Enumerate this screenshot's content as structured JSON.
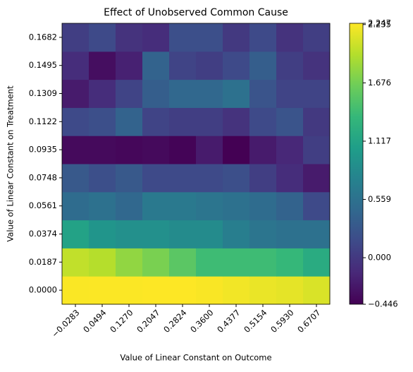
{
  "chart_data": {
    "type": "heatmap",
    "title": "Effect of Unobserved Common Cause",
    "x_label": "Value of Linear Constant on Outcome",
    "y_label": "Value of Linear Constant on Treatment",
    "x_categories": [
      "−0.0283",
      "0.0494",
      "0.1270",
      "0.2047",
      "0.2824",
      "0.3600",
      "0.4377",
      "0.5154",
      "0.5930",
      "0.6707"
    ],
    "y_categories": [
      "0.0000",
      "0.0187",
      "0.0374",
      "0.0561",
      "0.0748",
      "0.0935",
      "0.1122",
      "0.1309",
      "0.1495",
      "0.1682"
    ],
    "z": [
      [
        2.235,
        2.24,
        2.24,
        2.245,
        2.247,
        2.23,
        2.2,
        2.17,
        2.15,
        2.1
      ],
      [
        2.0,
        1.95,
        1.8,
        1.7,
        1.55,
        1.4,
        1.4,
        1.4,
        1.35,
        1.2
      ],
      [
        1.1,
        0.95,
        0.9,
        0.9,
        0.85,
        0.85,
        0.7,
        0.6,
        0.55,
        0.55
      ],
      [
        0.5,
        0.55,
        0.45,
        0.65,
        0.65,
        0.6,
        0.55,
        0.5,
        0.4,
        0.15
      ],
      [
        0.3,
        0.2,
        0.3,
        0.15,
        0.15,
        0.15,
        0.2,
        0.05,
        -0.1,
        -0.25
      ],
      [
        -0.38,
        -0.38,
        -0.4,
        -0.38,
        -0.42,
        -0.25,
        -0.446,
        -0.25,
        -0.15,
        0.05
      ],
      [
        0.15,
        0.2,
        0.4,
        0.1,
        0.05,
        0.05,
        -0.05,
        0.15,
        0.25,
        0.0
      ],
      [
        -0.25,
        -0.1,
        0.1,
        0.35,
        0.45,
        0.45,
        0.55,
        0.25,
        0.1,
        0.1
      ],
      [
        -0.1,
        -0.35,
        -0.2,
        0.4,
        0.1,
        0.05,
        0.15,
        0.35,
        0.05,
        -0.05
      ],
      [
        0.05,
        0.15,
        -0.05,
        -0.1,
        0.2,
        0.2,
        0.0,
        0.15,
        -0.05,
        0.05
      ]
    ],
    "colormap": "viridis",
    "colorbar": {
      "lim": [
        -0.446,
        2.247
      ],
      "ticks": [
        {
          "value": -0.446,
          "label": "−0.446"
        },
        {
          "value": 0,
          "label": "0.000"
        },
        0.559,
        1.117,
        1.676,
        2.235,
        2.247
      ]
    }
  }
}
